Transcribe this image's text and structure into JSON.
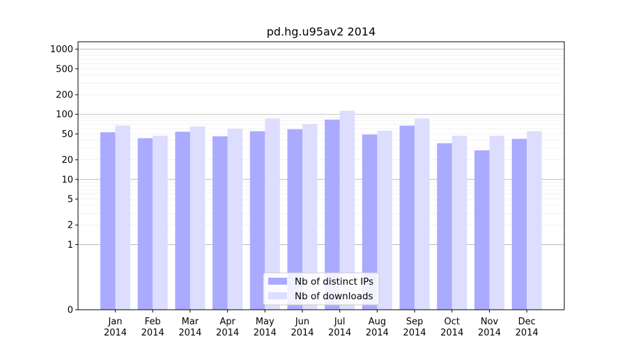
{
  "chart_data": {
    "type": "bar",
    "title": "pd.hg.u95av2 2014",
    "xlabel": "",
    "ylabel": "",
    "scale": "symlog",
    "ylim": [
      0,
      1300
    ],
    "y_ticks": [
      0,
      1,
      2,
      5,
      10,
      20,
      50,
      100,
      200,
      500,
      1000
    ],
    "grid": true,
    "legend_position": "bottom-center",
    "categories": [
      [
        "Jan",
        "2014"
      ],
      [
        "Feb",
        "2014"
      ],
      [
        "Mar",
        "2014"
      ],
      [
        "Apr",
        "2014"
      ],
      [
        "May",
        "2014"
      ],
      [
        "Jun",
        "2014"
      ],
      [
        "Jul",
        "2014"
      ],
      [
        "Aug",
        "2014"
      ],
      [
        "Sep",
        "2014"
      ],
      [
        "Oct",
        "2014"
      ],
      [
        "Nov",
        "2014"
      ],
      [
        "Dec",
        "2014"
      ]
    ],
    "series": [
      {
        "name": "Nb of distinct IPs",
        "color": "#aaaaff",
        "values": [
          53,
          43,
          54,
          46,
          55,
          59,
          83,
          49,
          67,
          36,
          28,
          42
        ]
      },
      {
        "name": "Nb of downloads",
        "color": "#ddddff",
        "values": [
          67,
          47,
          65,
          60,
          86,
          71,
          113,
          56,
          86,
          47,
          47,
          55
        ]
      }
    ]
  }
}
